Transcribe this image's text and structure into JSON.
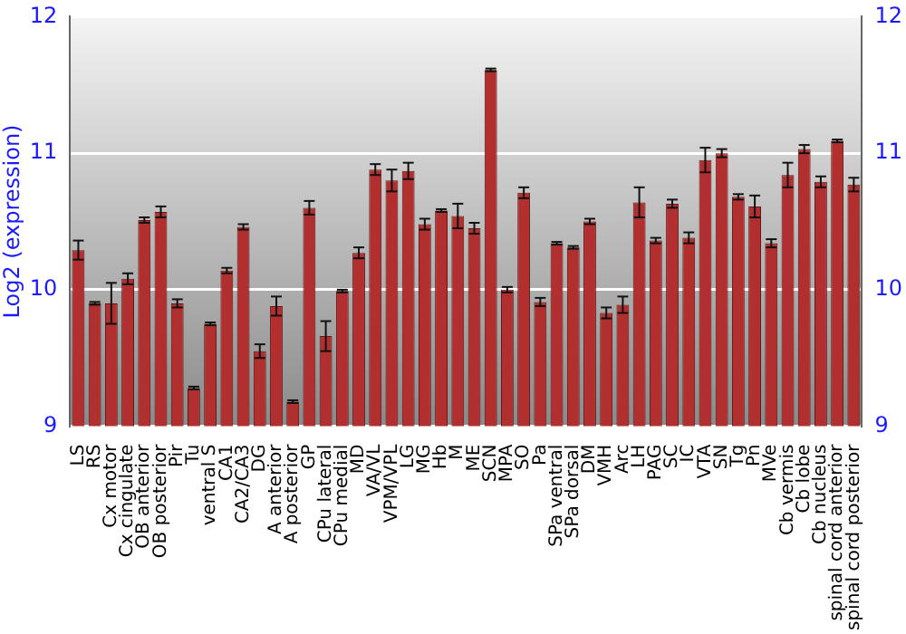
{
  "chart_data": {
    "type": "bar",
    "ylabel": "Log2 (expression)",
    "categories": [
      "LS",
      "RS",
      "Cx motor",
      "Cx cingulate",
      "OB anterior",
      "OB posterior",
      "Pir",
      "Tu",
      "ventral S",
      "CA1",
      "CA2/CA3",
      "DG",
      "A anterior",
      "A posterior",
      "GP",
      "CPu lateral",
      "CPu medial",
      "MD",
      "VA/VL",
      "VPM/VPL",
      "LG",
      "MG",
      "Hb",
      "M",
      "ME",
      "SCN",
      "MPA",
      "SO",
      "Pa",
      "SPa ventral",
      "SPa dorsal",
      "DM",
      "VMH",
      "Arc",
      "LH",
      "PAG",
      "SC",
      "IC",
      "VTA",
      "SN",
      "Tg",
      "Pn",
      "MVe",
      "Cb vermis",
      "Cb lobe",
      "Cb nucleus",
      "spinal cord anterior",
      "spinal cord posterior"
    ],
    "values": [
      10.29,
      9.9,
      9.9,
      10.08,
      10.51,
      10.57,
      9.9,
      9.28,
      9.75,
      10.14,
      10.46,
      9.55,
      9.88,
      9.18,
      10.6,
      9.66,
      9.99,
      10.27,
      10.88,
      10.8,
      10.87,
      10.48,
      10.58,
      10.54,
      10.45,
      11.61,
      10.0,
      10.71,
      9.91,
      10.34,
      10.31,
      10.5,
      9.83,
      9.89,
      10.64,
      10.36,
      10.63,
      10.38,
      10.95,
      11.0,
      10.68,
      10.61,
      10.34,
      10.84,
      11.03,
      10.79,
      11.09,
      10.77
    ],
    "errors": [
      0.07,
      0.01,
      0.15,
      0.04,
      0.02,
      0.04,
      0.03,
      0.01,
      0.01,
      0.02,
      0.02,
      0.05,
      0.07,
      0.01,
      0.05,
      0.11,
      0.01,
      0.04,
      0.04,
      0.08,
      0.06,
      0.04,
      0.01,
      0.09,
      0.04,
      0.01,
      0.02,
      0.04,
      0.03,
      0.01,
      0.01,
      0.02,
      0.04,
      0.06,
      0.11,
      0.02,
      0.03,
      0.04,
      0.09,
      0.03,
      0.02,
      0.08,
      0.03,
      0.09,
      0.03,
      0.04,
      0.01,
      0.05
    ],
    "color": "#b22f2f",
    "ylim": [
      9,
      12
    ],
    "yticks": [
      9,
      10,
      11,
      12
    ],
    "y2lim": [
      9,
      12
    ],
    "y2ticks": [
      9,
      10,
      11,
      12
    ],
    "grid": "y",
    "legend": false
  }
}
